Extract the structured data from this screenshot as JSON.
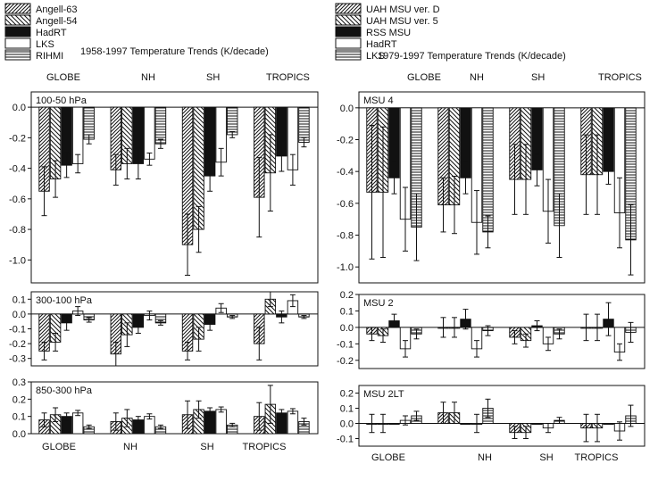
{
  "colors": {
    "ink": "#111111",
    "background": "#ffffff"
  },
  "chart_data": [
    {
      "type": "bar",
      "title": "1958-1997 Temperature Trends (K/decade)",
      "top_categories": [
        "GLOBE",
        "NH",
        "SH",
        "TROPICS"
      ],
      "bottom_categories": [
        "GLOBE",
        "NH",
        "SH",
        "TROPICS"
      ],
      "legend": {
        "placement": "top-left",
        "entries": [
          {
            "name": "Angell-63",
            "fill": "diag-fwd-dense"
          },
          {
            "name": "Angell-54",
            "fill": "diag-back"
          },
          {
            "name": "HadRT",
            "fill": "solid"
          },
          {
            "name": "LKS",
            "fill": "empty"
          },
          {
            "name": "RIHMI",
            "fill": "horiz"
          }
        ]
      },
      "panels": [
        {
          "label": "100-50 hPa",
          "ylim": [
            -1.15,
            0.1
          ],
          "yticks": [
            0.0,
            -0.2,
            -0.4,
            -0.6,
            -0.8,
            -1.0
          ],
          "ytick_labels": [
            "0.0",
            "-0.2",
            "-0.4",
            "-0.6",
            "-0.8",
            "-1.0"
          ],
          "series": [
            {
              "name": "Angell-63",
              "values": [
                -0.55,
                -0.41,
                -0.9,
                -0.59
              ],
              "errors": [
                0.16,
                0.1,
                0.2,
                0.26
              ]
            },
            {
              "name": "Angell-54",
              "values": [
                -0.47,
                -0.37,
                -0.8,
                -0.43
              ],
              "errors": [
                0.12,
                0.1,
                0.15,
                0.25
              ]
            },
            {
              "name": "HadRT",
              "values": [
                -0.38,
                -0.37,
                -0.45,
                -0.32
              ],
              "errors": [
                0.08,
                0.1,
                0.1,
                0.1
              ]
            },
            {
              "name": "LKS",
              "values": [
                -0.37,
                -0.34,
                -0.36,
                -0.41
              ],
              "errors": [
                0.06,
                0.04,
                0.09,
                0.1
              ]
            },
            {
              "name": "RIHMI",
              "values": [
                -0.21,
                -0.24,
                -0.18,
                -0.23
              ],
              "errors": [
                0.03,
                0.03,
                0.02,
                0.03
              ]
            }
          ]
        },
        {
          "label": "300-100 hPa",
          "ylim": [
            -0.35,
            0.15
          ],
          "yticks": [
            0.1,
            0.0,
            -0.1,
            -0.2,
            -0.3
          ],
          "ytick_labels": [
            "0.1",
            "0.0",
            "-0.1",
            "-0.2",
            "-0.3"
          ],
          "series": [
            {
              "name": "Angell-63",
              "values": [
                -0.25,
                -0.27,
                -0.25,
                -0.2
              ],
              "errors": [
                0.06,
                0.08,
                0.06,
                0.11
              ]
            },
            {
              "name": "Angell-54",
              "values": [
                -0.19,
                -0.14,
                -0.17,
                0.1
              ],
              "errors": [
                0.06,
                0.08,
                0.08,
                0.05
              ]
            },
            {
              "name": "HadRT",
              "values": [
                -0.06,
                -0.09,
                -0.07,
                -0.02
              ],
              "errors": [
                0.05,
                0.04,
                0.04,
                0.04
              ]
            },
            {
              "name": "LKS",
              "values": [
                0.02,
                -0.01,
                0.04,
                0.09
              ],
              "errors": [
                0.03,
                0.03,
                0.03,
                0.04
              ]
            },
            {
              "name": "RIHMI",
              "values": [
                -0.04,
                -0.06,
                -0.02,
                -0.02
              ],
              "errors": [
                0.015,
                0.015,
                0.01,
                0.01
              ]
            }
          ]
        },
        {
          "label": "850-300 hPa",
          "ylim": [
            0.0,
            0.3
          ],
          "yticks": [
            0.3,
            0.2,
            0.1,
            0.0
          ],
          "ytick_labels": [
            "0.3",
            "0.2",
            "0.1",
            "0.0"
          ],
          "series": [
            {
              "name": "Angell-63",
              "values": [
                0.08,
                0.07,
                0.11,
                0.1
              ],
              "errors": [
                0.04,
                0.05,
                0.08,
                0.08
              ]
            },
            {
              "name": "Angell-54",
              "values": [
                0.11,
                0.09,
                0.14,
                0.17
              ],
              "errors": [
                0.04,
                0.05,
                0.05,
                0.11
              ]
            },
            {
              "name": "HadRT",
              "values": [
                0.1,
                0.08,
                0.13,
                0.12
              ],
              "errors": [
                0.02,
                0.02,
                0.02,
                0.02
              ]
            },
            {
              "name": "LKS",
              "values": [
                0.12,
                0.1,
                0.14,
                0.13
              ],
              "errors": [
                0.015,
                0.015,
                0.015,
                0.015
              ]
            },
            {
              "name": "RIHMI",
              "values": [
                0.04,
                0.04,
                0.05,
                0.07
              ],
              "errors": [
                0.01,
                0.01,
                0.01,
                0.02
              ]
            }
          ]
        }
      ]
    },
    {
      "type": "bar",
      "title": "1979-1997 Temperature Trends (K/decade)",
      "top_categories": [
        "GLOBE",
        "NH",
        "SH",
        "TROPICS"
      ],
      "bottom_categories": [
        "GLOBE",
        "NH",
        "SH",
        "TROPICS"
      ],
      "legend": {
        "placement": "top-left",
        "entries": [
          {
            "name": "UAH MSU ver. D",
            "fill": "diag-fwd-dense"
          },
          {
            "name": "UAH MSU ver. 5",
            "fill": "diag-back"
          },
          {
            "name": "RSS MSU",
            "fill": "solid"
          },
          {
            "name": "HadRT",
            "fill": "empty"
          },
          {
            "name": "LKS",
            "fill": "horiz"
          }
        ]
      },
      "panels": [
        {
          "label": "MSU 4",
          "ylim": [
            -1.1,
            0.1
          ],
          "yticks": [
            0.0,
            -0.2,
            -0.4,
            -0.6,
            -0.8,
            -1.0
          ],
          "ytick_labels": [
            "0.0",
            "-0.2",
            "-0.4",
            "-0.6",
            "-0.8",
            "-1.0"
          ],
          "series": [
            {
              "name": "UAH MSU ver. D",
              "values": [
                -0.53,
                -0.61,
                -0.45,
                -0.42
              ],
              "errors": [
                0.42,
                0.17,
                0.22,
                0.25
              ]
            },
            {
              "name": "UAH MSU ver. 5",
              "values": [
                -0.53,
                -0.61,
                -0.45,
                -0.42
              ],
              "errors": [
                0.41,
                0.18,
                0.22,
                0.25
              ]
            },
            {
              "name": "RSS MSU",
              "values": [
                -0.44,
                -0.44,
                -0.39,
                -0.4
              ],
              "errors": [
                0.1,
                0.1,
                0.1,
                0.08
              ]
            },
            {
              "name": "HadRT",
              "values": [
                -0.7,
                -0.72,
                -0.65,
                -0.66
              ],
              "errors": [
                0.2,
                0.2,
                0.2,
                0.22
              ]
            },
            {
              "name": "LKS",
              "values": [
                -0.75,
                -0.78,
                -0.74,
                -0.83
              ],
              "errors": [
                0.21,
                0.1,
                0.2,
                0.22
              ]
            }
          ]
        },
        {
          "label": "MSU 2",
          "ylim": [
            -0.25,
            0.2
          ],
          "yticks": [
            0.2,
            0.1,
            0.0,
            -0.1,
            -0.2
          ],
          "ytick_labels": [
            "0.2",
            "0.1",
            "0.0",
            "-0.1",
            "-0.2"
          ],
          "series": [
            {
              "name": "UAH MSU ver. D",
              "values": [
                -0.04,
                0.0,
                -0.06,
                0.0
              ],
              "errors": [
                0.04,
                0.06,
                0.04,
                0.08
              ]
            },
            {
              "name": "UAH MSU ver. 5",
              "values": [
                -0.05,
                0.0,
                -0.08,
                0.0
              ],
              "errors": [
                0.04,
                0.06,
                0.04,
                0.08
              ]
            },
            {
              "name": "RSS MSU",
              "values": [
                0.04,
                0.05,
                0.01,
                0.05
              ],
              "errors": [
                0.04,
                0.06,
                0.03,
                0.1
              ]
            },
            {
              "name": "HadRT",
              "values": [
                -0.13,
                -0.13,
                -0.1,
                -0.15
              ],
              "errors": [
                0.05,
                0.05,
                0.04,
                0.05
              ]
            },
            {
              "name": "LKS",
              "values": [
                -0.04,
                -0.02,
                -0.04,
                -0.03
              ],
              "errors": [
                0.03,
                0.03,
                0.03,
                0.06
              ]
            }
          ]
        },
        {
          "label": "MSU 2LT",
          "ylim": [
            -0.15,
            0.25
          ],
          "yticks": [
            0.2,
            0.1,
            0.0,
            -0.1
          ],
          "ytick_labels": [
            "0.2",
            "0.1",
            "0.0",
            "-0.1"
          ],
          "series": [
            {
              "name": "UAH MSU ver. D",
              "values": [
                0.0,
                0.07,
                -0.06,
                -0.03
              ],
              "errors": [
                0.06,
                0.07,
                0.04,
                0.09
              ]
            },
            {
              "name": "UAH MSU ver. 5",
              "values": [
                0.0,
                0.07,
                -0.06,
                -0.03
              ],
              "errors": [
                0.06,
                0.07,
                0.04,
                0.09
              ]
            },
            {
              "name": "RSS MSU",
              "values": [
                0.0,
                0.0,
                0.0,
                0.0
              ],
              "errors": [
                0.0,
                0.0,
                0.0,
                0.0
              ]
            },
            {
              "name": "HadRT",
              "values": [
                0.02,
                0.0,
                -0.03,
                -0.05
              ],
              "errors": [
                0.03,
                0.06,
                0.03,
                0.06
              ]
            },
            {
              "name": "LKS",
              "values": [
                0.05,
                0.1,
                0.02,
                0.05
              ],
              "errors": [
                0.03,
                0.06,
                0.02,
                0.07
              ]
            }
          ]
        }
      ]
    }
  ]
}
